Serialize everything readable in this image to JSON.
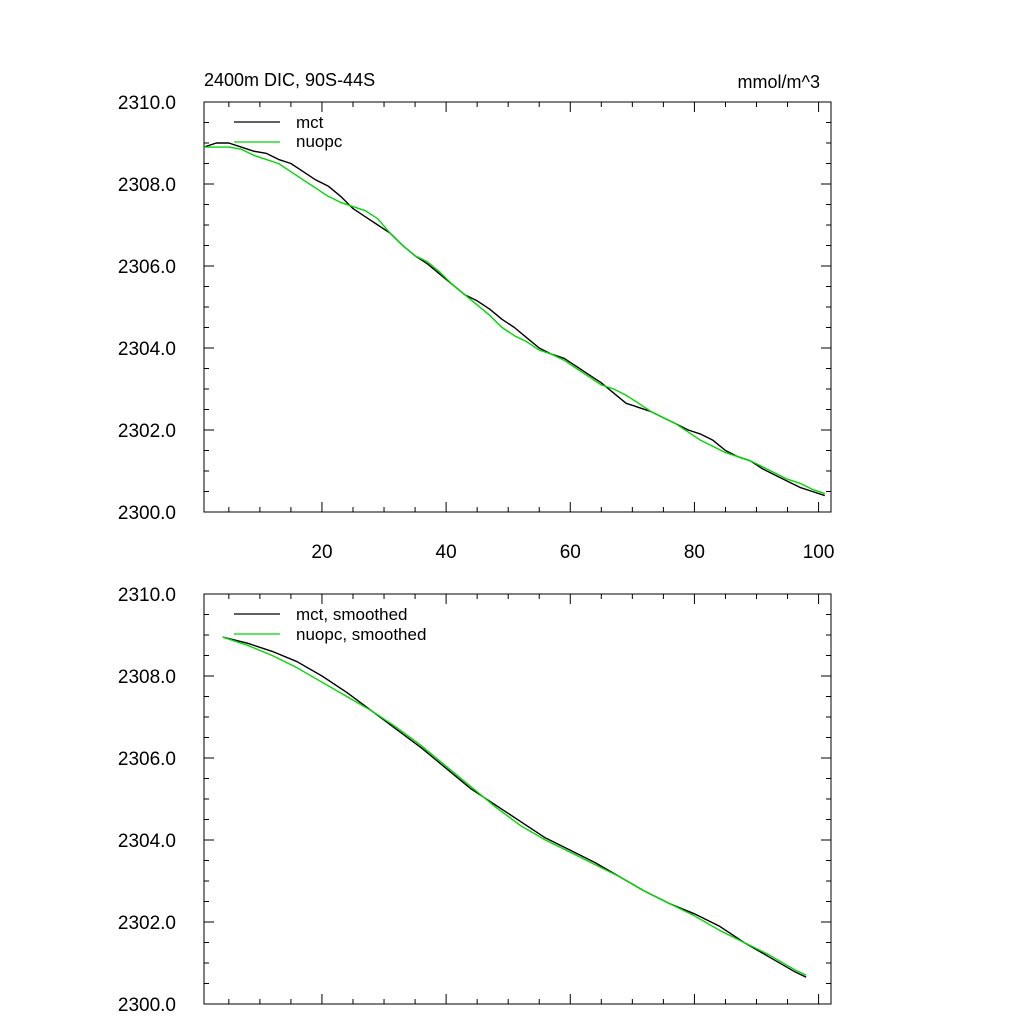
{
  "chart_data": [
    {
      "type": "line",
      "title": "2400m DIC, 90S-44S",
      "units_label": "mmol/m^3",
      "xlabel": "",
      "ylabel": "",
      "xlim": [
        1,
        102
      ],
      "ylim": [
        2300.0,
        2310.0
      ],
      "xticks": [
        20,
        40,
        60,
        80,
        100
      ],
      "xtick_labels": [
        "20",
        "40",
        "60",
        "80",
        "100"
      ],
      "yticks": [
        2300.0,
        2302.0,
        2304.0,
        2306.0,
        2308.0,
        2310.0
      ],
      "ytick_labels": [
        "2300.0",
        "2302.0",
        "2304.0",
        "2306.0",
        "2308.0",
        "2310.0"
      ],
      "grid": false,
      "legend_position": "top-left",
      "series": [
        {
          "name": "mct",
          "color": "#000000",
          "x": [
            1,
            3,
            5,
            7,
            9,
            11,
            13,
            15,
            17,
            19,
            21,
            23,
            25,
            27,
            29,
            31,
            33,
            35,
            37,
            39,
            41,
            43,
            45,
            47,
            49,
            51,
            53,
            55,
            57,
            59,
            61,
            63,
            65,
            67,
            69,
            71,
            73,
            75,
            77,
            79,
            81,
            83,
            85,
            87,
            89,
            91,
            93,
            95,
            97,
            99,
            101
          ],
          "y": [
            2308.9,
            2309.0,
            2309.0,
            2308.9,
            2308.8,
            2308.75,
            2308.6,
            2308.5,
            2308.3,
            2308.1,
            2307.95,
            2307.7,
            2307.4,
            2307.2,
            2307.0,
            2306.8,
            2306.5,
            2306.25,
            2306.05,
            2305.8,
            2305.55,
            2305.3,
            2305.15,
            2304.95,
            2304.7,
            2304.5,
            2304.25,
            2304.0,
            2303.85,
            2303.75,
            2303.55,
            2303.35,
            2303.15,
            2302.9,
            2302.65,
            2302.55,
            2302.45,
            2302.3,
            2302.15,
            2302.0,
            2301.9,
            2301.75,
            2301.5,
            2301.35,
            2301.25,
            2301.05,
            2300.9,
            2300.75,
            2300.6,
            2300.5,
            2300.4
          ]
        },
        {
          "name": "nuopc",
          "color": "#00d800",
          "x": [
            1,
            3,
            5,
            7,
            9,
            11,
            13,
            15,
            17,
            19,
            21,
            23,
            25,
            27,
            29,
            31,
            33,
            35,
            37,
            39,
            41,
            43,
            45,
            47,
            49,
            51,
            53,
            55,
            57,
            59,
            61,
            63,
            65,
            67,
            69,
            71,
            73,
            75,
            77,
            79,
            81,
            83,
            85,
            87,
            89,
            91,
            93,
            95,
            97,
            99,
            101
          ],
          "y": [
            2308.9,
            2308.9,
            2308.9,
            2308.85,
            2308.7,
            2308.6,
            2308.5,
            2308.3,
            2308.1,
            2307.9,
            2307.7,
            2307.55,
            2307.45,
            2307.35,
            2307.15,
            2306.8,
            2306.5,
            2306.25,
            2306.1,
            2305.85,
            2305.55,
            2305.3,
            2305.05,
            2304.8,
            2304.5,
            2304.3,
            2304.15,
            2303.95,
            2303.85,
            2303.7,
            2303.5,
            2303.3,
            2303.1,
            2303.0,
            2302.85,
            2302.65,
            2302.45,
            2302.3,
            2302.15,
            2301.95,
            2301.75,
            2301.6,
            2301.45,
            2301.35,
            2301.25,
            2301.1,
            2300.95,
            2300.8,
            2300.7,
            2300.55,
            2300.45
          ]
        }
      ]
    },
    {
      "type": "line",
      "title": "",
      "xlabel": "",
      "ylabel": "",
      "xlim": [
        1,
        102
      ],
      "ylim": [
        2300.0,
        2310.0
      ],
      "xticks": [
        20,
        40,
        60,
        80,
        100
      ],
      "xtick_labels": [],
      "yticks": [
        2300.0,
        2302.0,
        2304.0,
        2306.0,
        2308.0,
        2310.0
      ],
      "ytick_labels": [
        "2300.0",
        "2302.0",
        "2304.0",
        "2306.0",
        "2308.0",
        "2310.0"
      ],
      "grid": false,
      "legend_position": "top-left",
      "series": [
        {
          "name": "mct, smoothed",
          "color": "#000000",
          "x": [
            4,
            8,
            12,
            16,
            20,
            24,
            28,
            32,
            36,
            40,
            44,
            48,
            52,
            56,
            60,
            64,
            68,
            72,
            76,
            80,
            84,
            88,
            92,
            96,
            98
          ],
          "y": [
            2308.95,
            2308.8,
            2308.6,
            2308.35,
            2308.0,
            2307.6,
            2307.15,
            2306.7,
            2306.25,
            2305.75,
            2305.25,
            2304.85,
            2304.45,
            2304.05,
            2303.75,
            2303.45,
            2303.1,
            2302.75,
            2302.45,
            2302.2,
            2301.9,
            2301.5,
            2301.15,
            2300.8,
            2300.65
          ]
        },
        {
          "name": "nuopc, smoothed",
          "color": "#00d800",
          "x": [
            4,
            8,
            12,
            16,
            20,
            24,
            28,
            32,
            36,
            40,
            44,
            48,
            52,
            56,
            60,
            64,
            68,
            72,
            76,
            80,
            84,
            88,
            92,
            96,
            98
          ],
          "y": [
            2308.95,
            2308.75,
            2308.5,
            2308.2,
            2307.85,
            2307.5,
            2307.15,
            2306.75,
            2306.3,
            2305.8,
            2305.3,
            2304.8,
            2304.35,
            2304.0,
            2303.7,
            2303.4,
            2303.1,
            2302.75,
            2302.45,
            2302.15,
            2301.8,
            2301.5,
            2301.2,
            2300.85,
            2300.7
          ]
        }
      ]
    }
  ]
}
